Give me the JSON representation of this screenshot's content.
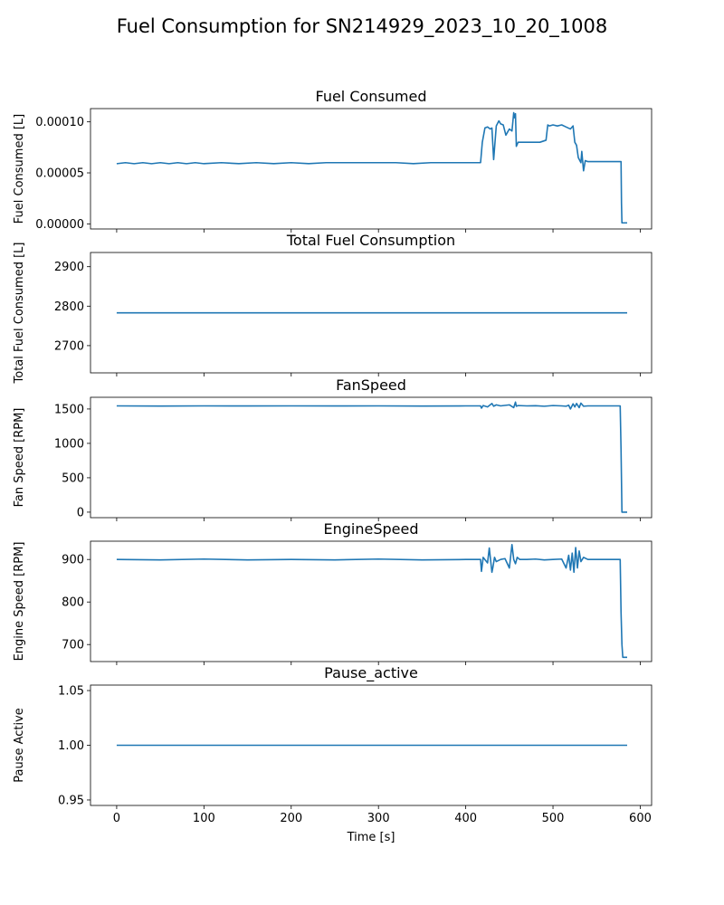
{
  "figure_title": "Fuel Consumption for SN214929_2023_10_20_1008",
  "xlabel": "Time [s]",
  "x_ticks": [
    0,
    100,
    200,
    300,
    400,
    500,
    600
  ],
  "line_color": "#1f77b4",
  "chart_data": [
    {
      "type": "line",
      "title": "Fuel Consumed",
      "ylabel": "Fuel Consumed [L]",
      "xlim": [
        -30,
        613
      ],
      "ylim": [
        -5e-06,
        0.000113
      ],
      "yticks": [
        0.0,
        5e-05,
        0.0001
      ],
      "ytick_labels": [
        "0.00000",
        "0.00005",
        "0.00010"
      ],
      "x": [
        0,
        10,
        20,
        30,
        40,
        50,
        60,
        70,
        80,
        90,
        100,
        120,
        140,
        160,
        180,
        200,
        220,
        240,
        260,
        280,
        300,
        320,
        340,
        360,
        380,
        400,
        417,
        419,
        422,
        425,
        428,
        430,
        432,
        435,
        438,
        440,
        443,
        446,
        450,
        453,
        455,
        456,
        457,
        458,
        460,
        465,
        475,
        485,
        492,
        494,
        496,
        500,
        505,
        510,
        515,
        520,
        523,
        525,
        527,
        529,
        532,
        533,
        535,
        537,
        540,
        545,
        550,
        560,
        570,
        578,
        578.5,
        579,
        585
      ],
      "y": [
        5.9e-05,
        6e-05,
        5.9e-05,
        6e-05,
        5.9e-05,
        6e-05,
        5.9e-05,
        6e-05,
        5.9e-05,
        6e-05,
        5.9e-05,
        6e-05,
        5.9e-05,
        6e-05,
        5.9e-05,
        6e-05,
        5.9e-05,
        6e-05,
        6e-05,
        6e-05,
        6e-05,
        6e-05,
        5.9e-05,
        6e-05,
        6e-05,
        6e-05,
        6e-05,
        8e-05,
        9.4e-05,
        9.5e-05,
        9.3e-05,
        9.4e-05,
        6.3e-05,
        9.6e-05,
        0.000101,
        9.8e-05,
        9.7e-05,
        8.7e-05,
        9.3e-05,
        9.1e-05,
        0.000109,
        0.000104,
        0.000108,
        7.6e-05,
        8e-05,
        8e-05,
        8e-05,
        8e-05,
        8.2e-05,
        9.7e-05,
        9.6e-05,
        9.7e-05,
        9.6e-05,
        9.7e-05,
        9.5e-05,
        9.3e-05,
        9.6e-05,
        8e-05,
        7.7e-05,
        6.5e-05,
        6e-05,
        7.1e-05,
        5.2e-05,
        6.2e-05,
        6.1e-05,
        6.1e-05,
        6.1e-05,
        6.1e-05,
        6.1e-05,
        6.1e-05,
        2e-05,
        1e-06,
        1e-06
      ]
    },
    {
      "type": "line",
      "title": "Total Fuel Consumption",
      "ylabel": "Total Fuel Consumed [L]",
      "xlim": [
        -30,
        613
      ],
      "ylim": [
        2631,
        2936
      ],
      "yticks": [
        2700,
        2800,
        2900
      ],
      "ytick_labels": [
        "2700",
        "2800",
        "2900"
      ],
      "x": [
        0,
        585
      ],
      "y": [
        2783,
        2783
      ]
    },
    {
      "type": "line",
      "title": "FanSpeed",
      "ylabel": "Fan Speed [RPM]",
      "xlim": [
        -30,
        613
      ],
      "ylim": [
        -80,
        1670
      ],
      "yticks": [
        0,
        500,
        1000,
        1500
      ],
      "ytick_labels": [
        "0",
        "500",
        "1000",
        "1500"
      ],
      "x": [
        0,
        50,
        100,
        150,
        200,
        250,
        300,
        350,
        400,
        417,
        418,
        420,
        425,
        430,
        432,
        435,
        440,
        450,
        455,
        457,
        458,
        460,
        470,
        480,
        490,
        500,
        510,
        515,
        518,
        520,
        523,
        525,
        527,
        530,
        532,
        535,
        540,
        550,
        560,
        570,
        577,
        578,
        579,
        585
      ],
      "y": [
        1545,
        1543,
        1545,
        1544,
        1545,
        1544,
        1545,
        1543,
        1545,
        1545,
        1512,
        1550,
        1530,
        1580,
        1540,
        1560,
        1545,
        1560,
        1520,
        1600,
        1540,
        1550,
        1545,
        1548,
        1540,
        1550,
        1545,
        1540,
        1555,
        1500,
        1575,
        1530,
        1580,
        1520,
        1585,
        1540,
        1545,
        1545,
        1545,
        1545,
        1545,
        900,
        0,
        0
      ]
    },
    {
      "type": "line",
      "title": "EngineSpeed",
      "ylabel": "Engine Speed [RPM]",
      "xlim": [
        -30,
        613
      ],
      "ylim": [
        660,
        943
      ],
      "yticks": [
        700,
        800,
        900
      ],
      "ytick_labels": [
        "700",
        "800",
        "900"
      ],
      "x": [
        0,
        50,
        100,
        150,
        200,
        250,
        300,
        350,
        400,
        417,
        418,
        420,
        425,
        427,
        430,
        431,
        433,
        435,
        440,
        445,
        450,
        453,
        455,
        457,
        459,
        462,
        470,
        480,
        490,
        500,
        510,
        515,
        518,
        520,
        522,
        524,
        526,
        528,
        530,
        532,
        535,
        540,
        550,
        560,
        570,
        577,
        578,
        579,
        580,
        585
      ],
      "y": [
        900,
        899,
        901,
        899,
        900,
        899,
        901,
        899,
        900,
        900,
        872,
        905,
        892,
        927,
        870,
        880,
        905,
        895,
        900,
        902,
        880,
        935,
        900,
        890,
        905,
        900,
        900,
        901,
        899,
        900,
        901,
        880,
        910,
        875,
        915,
        870,
        928,
        880,
        920,
        895,
        905,
        900,
        900,
        900,
        900,
        900,
        775,
        700,
        670,
        670
      ]
    },
    {
      "type": "line",
      "title": "Pause_active",
      "ylabel": "Pause Active",
      "xlim": [
        -30,
        613
      ],
      "ylim": [
        0.945,
        1.055
      ],
      "yticks": [
        0.95,
        1.0,
        1.05
      ],
      "ytick_labels": [
        "0.95",
        "1.00",
        "1.05"
      ],
      "x": [
        0,
        585
      ],
      "y": [
        1.0,
        1.0
      ]
    }
  ]
}
